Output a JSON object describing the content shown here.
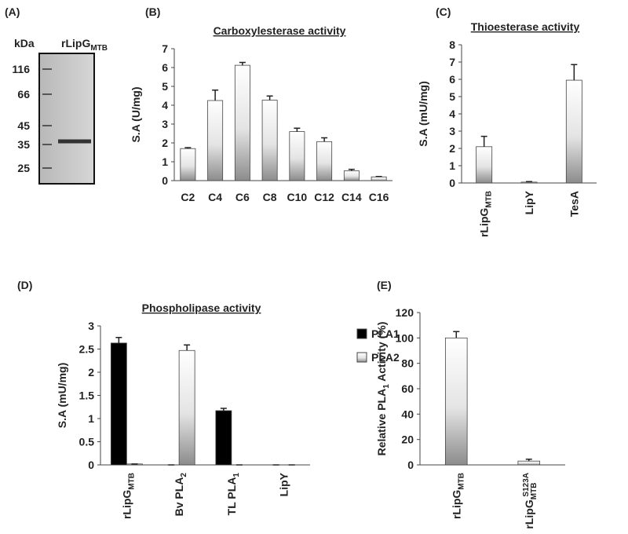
{
  "gel": {
    "panel": "(A)",
    "unit": "kDa",
    "lane": {
      "text": "rLipG",
      "sub": "MTB"
    },
    "markers": [
      116,
      66,
      45,
      35,
      25
    ]
  },
  "chart_data": [
    {
      "type": "bar",
      "panel": "(B)",
      "title": "Carboxylesterase activity",
      "y_label": "S.A (U/mg)",
      "categories": [
        "C2",
        "C4",
        "C6",
        "C8",
        "C10",
        "C12",
        "C14",
        "C16"
      ],
      "values": [
        1.7,
        4.25,
        6.12,
        4.27,
        2.6,
        2.07,
        0.52,
        0.2
      ],
      "errors": [
        0.05,
        0.55,
        0.15,
        0.22,
        0.18,
        0.2,
        0.08,
        0.02
      ],
      "color": "#8c8c8c",
      "ylim": [
        0,
        7
      ],
      "yticks": [
        0,
        1,
        2,
        3,
        4,
        5,
        6,
        7
      ]
    },
    {
      "type": "bar",
      "panel": "(C)",
      "title": "Thioesterase activity",
      "y_label": "S.A (mU/mg)",
      "categories": [
        {
          "text": "rLipG",
          "sub": "MTB"
        },
        "LipY",
        "TesA"
      ],
      "values": [
        2.1,
        0.05,
        5.95
      ],
      "errors": [
        0.6,
        0.03,
        0.9
      ],
      "color": "#8c8c8c",
      "ylim": [
        0,
        8
      ],
      "yticks": [
        0,
        1,
        2,
        3,
        4,
        5,
        6,
        7,
        8
      ]
    },
    {
      "type": "grouped_bar",
      "panel": "(D)",
      "title": "Phospholipase activity",
      "y_label": "S.A (mU/mg)",
      "categories": [
        {
          "text": "rLipG",
          "sub": "MTB"
        },
        {
          "text": "Bv PLA",
          "sub": "2"
        },
        {
          "text": "TL PLA",
          "sub": "1"
        },
        "LipY"
      ],
      "series": [
        {
          "name": "PLA1",
          "color": "#000000",
          "gradient": false,
          "values": [
            2.63,
            0,
            1.17,
            0
          ],
          "errors": [
            0.12,
            0,
            0.05,
            0
          ]
        },
        {
          "name": "PLA2",
          "color": "#8c8c8c",
          "gradient": true,
          "values": [
            0.02,
            2.47,
            0,
            0
          ],
          "errors": [
            0,
            0.12,
            0,
            0
          ]
        }
      ],
      "ylim": [
        0,
        3
      ],
      "yticks": [
        0,
        0.5,
        1,
        1.5,
        2,
        2.5,
        3
      ],
      "legend": "top-right"
    },
    {
      "type": "bar",
      "panel": "(E)",
      "y_label": {
        "text": "Relative PLA",
        "sub": "1",
        "tail": " Activity (%)"
      },
      "categories": [
        {
          "text": "rLipG",
          "sub": "MTB"
        },
        {
          "text": "rLipG",
          "sub": "MTB",
          "sup": "S123A"
        }
      ],
      "values": [
        100,
        3
      ],
      "errors": [
        5,
        1.5
      ],
      "color": "#8c8c8c",
      "ylim": [
        0,
        120
      ],
      "yticks": [
        0,
        20,
        40,
        60,
        80,
        100,
        120
      ]
    }
  ]
}
